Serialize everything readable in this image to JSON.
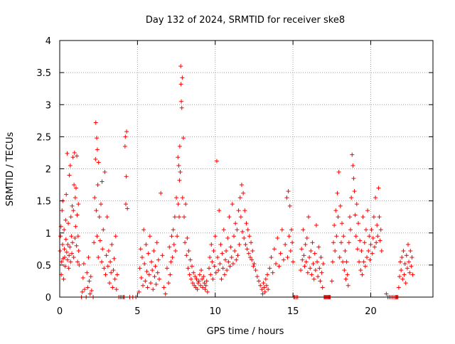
{
  "chart_data": {
    "type": "scatter",
    "title": "Day 132 of 2024, SRMTID for receiver ske8",
    "xlabel": "GPS time / hours",
    "ylabel": "SRMTID / TECUs",
    "xlim": [
      0,
      24
    ],
    "ylim": [
      0,
      4
    ],
    "x_ticks": [
      0,
      5,
      10,
      15,
      20
    ],
    "x_tick_labels": [
      "0",
      "5",
      "10",
      "15",
      "20"
    ],
    "y_ticks": [
      0,
      0.5,
      1,
      1.5,
      2,
      2.5,
      3,
      3.5,
      4
    ],
    "y_tick_labels": [
      "0",
      "0.5",
      "1",
      "1.5",
      "2",
      "2.5",
      "3",
      "3.5",
      "4"
    ],
    "grid": true,
    "marker": "+",
    "marker_color": "#ff0000",
    "series": [
      {
        "name": "SRMTID",
        "color": "#ff0000",
        "x": [
          0.02,
          0.05,
          0.08,
          0.1,
          0.12,
          0.15,
          0.18,
          0.2,
          0.22,
          0.25,
          0.28,
          0.3,
          0.32,
          0.35,
          0.38,
          0.4,
          0.42,
          0.45,
          0.48,
          0.5,
          0.52,
          0.55,
          0.58,
          0.6,
          0.62,
          0.65,
          0.68,
          0.7,
          0.72,
          0.75,
          0.78,
          0.8,
          0.82,
          0.85,
          0.88,
          0.9,
          0.92,
          0.95,
          0.98,
          1.0,
          1.02,
          1.05,
          1.08,
          1.1,
          1.12,
          1.15,
          1.18,
          1.2,
          1.22,
          1.25,
          1.4,
          1.45,
          1.5,
          1.55,
          1.6,
          1.7,
          1.75,
          1.8,
          1.85,
          1.9,
          1.95,
          2.0,
          2.05,
          2.15,
          2.2,
          2.25,
          2.3,
          2.32,
          2.35,
          2.38,
          2.4,
          2.42,
          2.45,
          2.48,
          2.5,
          2.55,
          2.6,
          2.65,
          2.7,
          2.72,
          2.75,
          2.8,
          2.85,
          2.9,
          2.95,
          3.0,
          3.05,
          3.1,
          3.15,
          3.2,
          3.25,
          3.3,
          3.35,
          3.4,
          3.45,
          3.5,
          3.55,
          3.6,
          3.65,
          3.7,
          3.8,
          3.9,
          4.0,
          4.1,
          4.15,
          4.2,
          4.22,
          4.25,
          4.28,
          4.3,
          4.35,
          4.5,
          4.7,
          4.9,
          5.1,
          5.15,
          5.2,
          5.25,
          5.3,
          5.35,
          5.4,
          5.45,
          5.5,
          5.55,
          5.6,
          5.65,
          5.7,
          5.75,
          5.8,
          5.85,
          5.9,
          5.95,
          6.0,
          6.05,
          6.1,
          6.15,
          6.2,
          6.25,
          6.3,
          6.35,
          6.4,
          6.5,
          6.6,
          6.7,
          6.8,
          6.9,
          7.0,
          7.05,
          7.1,
          7.15,
          7.2,
          7.25,
          7.3,
          7.35,
          7.4,
          7.45,
          7.5,
          7.55,
          7.6,
          7.62,
          7.65,
          7.68,
          7.7,
          7.72,
          7.75,
          7.78,
          7.8,
          7.82,
          7.85,
          7.88,
          7.9,
          7.95,
          8.0,
          8.05,
          8.1,
          8.15,
          8.2,
          8.25,
          8.3,
          8.35,
          8.4,
          8.45,
          8.5,
          8.55,
          8.6,
          8.65,
          8.7,
          8.75,
          8.8,
          8.85,
          8.9,
          8.95,
          9.0,
          9.05,
          9.1,
          9.15,
          9.2,
          9.25,
          9.3,
          9.35,
          9.4,
          9.45,
          9.5,
          9.6,
          9.65,
          9.7,
          9.75,
          9.8,
          9.85,
          9.9,
          9.95,
          10.0,
          10.05,
          10.1,
          10.15,
          10.2,
          10.25,
          10.3,
          10.35,
          10.4,
          10.45,
          10.5,
          10.55,
          10.6,
          10.65,
          10.7,
          10.75,
          10.8,
          10.85,
          10.9,
          10.95,
          11.0,
          11.05,
          11.1,
          11.15,
          11.2,
          11.25,
          11.3,
          11.35,
          11.4,
          11.45,
          11.5,
          11.55,
          11.6,
          11.65,
          11.7,
          11.75,
          11.8,
          11.85,
          11.9,
          11.95,
          12.0,
          12.05,
          12.1,
          12.15,
          12.2,
          12.25,
          12.3,
          12.35,
          12.4,
          12.45,
          12.5,
          12.6,
          12.7,
          12.8,
          12.9,
          13.0,
          13.05,
          13.1,
          13.15,
          13.2,
          13.25,
          13.3,
          13.35,
          13.4,
          13.5,
          13.6,
          13.7,
          13.8,
          13.9,
          14.0,
          14.1,
          14.2,
          14.3,
          14.4,
          14.5,
          14.6,
          14.65,
          14.7,
          14.75,
          14.8,
          14.85,
          14.9,
          14.95,
          15.0,
          15.05,
          15.1,
          15.2,
          15.3,
          15.5,
          15.55,
          15.6,
          15.65,
          15.7,
          15.75,
          15.8,
          15.85,
          15.9,
          15.95,
          16.0,
          16.05,
          16.1,
          16.15,
          16.2,
          16.25,
          16.3,
          16.35,
          16.4,
          16.45,
          16.5,
          16.55,
          16.6,
          16.65,
          16.7,
          16.75,
          16.8,
          16.85,
          16.9,
          16.95,
          17.0,
          17.05,
          17.1,
          17.15,
          17.2,
          17.25,
          17.3,
          17.35,
          17.4,
          17.5,
          17.55,
          17.6,
          17.65,
          17.7,
          17.75,
          17.8,
          17.85,
          17.9,
          17.95,
          18.0,
          18.05,
          18.1,
          18.15,
          18.2,
          18.25,
          18.3,
          18.35,
          18.4,
          18.45,
          18.5,
          18.55,
          18.6,
          18.65,
          18.7,
          18.75,
          18.8,
          18.85,
          18.9,
          18.95,
          19.0,
          19.05,
          19.1,
          19.15,
          19.2,
          19.25,
          19.3,
          19.35,
          19.4,
          19.45,
          19.5,
          19.55,
          19.6,
          19.65,
          19.7,
          19.75,
          19.8,
          19.85,
          19.9,
          19.95,
          20.0,
          20.05,
          20.1,
          20.15,
          20.2,
          20.25,
          20.3,
          20.35,
          20.4,
          20.45,
          20.5,
          20.55,
          20.6,
          20.65,
          20.7,
          21.0,
          21.1,
          21.2,
          21.3,
          21.4,
          21.5,
          21.6,
          21.65,
          21.7,
          21.75,
          21.8,
          21.85,
          21.9,
          21.95,
          22.0,
          22.05,
          22.1,
          22.15,
          22.2,
          22.25,
          22.3,
          22.35,
          22.4,
          22.45,
          22.5,
          22.55,
          22.6,
          22.65,
          22.7
        ],
        "y": [
          0.72,
          0.95,
          1.1,
          0.35,
          0.55,
          1.35,
          0.82,
          1.5,
          0.6,
          0.28,
          1.05,
          0.75,
          0.62,
          0.48,
          1.2,
          0.9,
          1.6,
          0.7,
          2.24,
          0.58,
          0.82,
          1.15,
          0.45,
          0.65,
          1.9,
          0.78,
          2.05,
          0.55,
          1.25,
          0.95,
          0.68,
          1.42,
          0.85,
          2.18,
          1.35,
          0.62,
          1.75,
          2.25,
          0.92,
          1.55,
          1.1,
          1.7,
          0.8,
          2.2,
          1.28,
          0.55,
          0.95,
          1.45,
          0.72,
          0.5,
          0.0,
          0.08,
          0.3,
          0.52,
          0.12,
          0.0,
          0.38,
          0.15,
          0.62,
          0.25,
          0.05,
          0.32,
          0.1,
          0.0,
          0.85,
          1.55,
          2.15,
          2.72,
          1.35,
          2.48,
          0.95,
          2.3,
          1.75,
          0.62,
          2.1,
          1.25,
          0.88,
          1.45,
          0.55,
          1.8,
          0.75,
          1.05,
          0.45,
          1.95,
          0.35,
          0.65,
          1.25,
          0.48,
          0.72,
          0.22,
          0.55,
          0.38,
          0.82,
          0.15,
          0.42,
          0.6,
          0.28,
          0.95,
          0.12,
          0.35,
          0.0,
          0.0,
          0.0,
          0.0,
          0.0,
          2.35,
          2.5,
          1.45,
          1.88,
          2.58,
          1.38,
          0.0,
          0.0,
          0.0,
          0.08,
          0.45,
          0.75,
          0.3,
          0.62,
          0.18,
          1.05,
          0.52,
          0.25,
          0.82,
          0.4,
          0.15,
          0.68,
          0.35,
          0.95,
          0.22,
          0.55,
          0.42,
          0.12,
          0.72,
          0.32,
          0.48,
          0.2,
          0.85,
          0.38,
          0.58,
          0.28,
          1.62,
          0.65,
          0.15,
          0.05,
          0.45,
          0.22,
          0.78,
          0.35,
          0.55,
          0.95,
          0.62,
          1.05,
          0.82,
          1.25,
          0.72,
          1.55,
          0.95,
          2.18,
          1.45,
          2.05,
          1.25,
          1.82,
          2.35,
          1.95,
          3.6,
          3.32,
          3.05,
          2.95,
          3.42,
          1.55,
          2.48,
          1.25,
          0.85,
          1.45,
          0.65,
          0.92,
          0.45,
          0.72,
          0.35,
          0.58,
          0.28,
          0.48,
          0.22,
          0.38,
          0.18,
          0.32,
          0.15,
          0.28,
          0.12,
          0.22,
          0.25,
          0.35,
          0.18,
          0.42,
          0.28,
          0.15,
          0.32,
          0.22,
          0.12,
          0.18,
          0.25,
          0.08,
          0.45,
          0.62,
          0.35,
          0.82,
          0.55,
          0.28,
          0.72,
          0.48,
          0.95,
          0.38,
          2.12,
          0.62,
          0.42,
          1.35,
          0.52,
          0.82,
          0.28,
          0.68,
          0.45,
          1.05,
          0.35,
          0.58,
          0.72,
          0.42,
          0.92,
          0.55,
          1.25,
          0.48,
          0.78,
          0.62,
          1.45,
          0.52,
          0.95,
          0.72,
          1.15,
          0.58,
          1.05,
          0.65,
          1.35,
          0.82,
          1.55,
          1.25,
          1.75,
          1.02,
          1.62,
          0.92,
          1.35,
          0.82,
          1.15,
          0.75,
          1.05,
          0.68,
          0.95,
          0.62,
          0.85,
          0.58,
          0.72,
          0.48,
          0.52,
          0.42,
          0.32,
          0.25,
          0.18,
          0.12,
          0.05,
          0.22,
          0.15,
          0.08,
          0.28,
          0.18,
          0.35,
          0.12,
          0.45,
          0.62,
          0.38,
          0.75,
          0.52,
          0.92,
          0.48,
          0.68,
          1.05,
          0.58,
          0.82,
          1.55,
          0.62,
          1.65,
          0.95,
          1.42,
          0.72,
          1.05,
          0.85,
          0.55,
          0.0,
          0.0,
          0.0,
          0.0,
          0.42,
          0.75,
          0.58,
          1.05,
          0.65,
          0.48,
          0.82,
          0.55,
          0.92,
          0.38,
          1.25,
          0.62,
          0.45,
          0.72,
          0.35,
          0.85,
          0.52,
          0.28,
          0.68,
          0.42,
          1.12,
          0.55,
          0.32,
          0.78,
          0.45,
          0.25,
          0.62,
          0.38,
          0.15,
          0.52,
          0.0,
          0.0,
          0.0,
          0.0,
          0.0,
          0.0,
          0.0,
          0.0,
          0.0,
          0.25,
          0.55,
          0.85,
          1.12,
          0.72,
          1.35,
          0.95,
          1.62,
          1.25,
          1.95,
          0.62,
          1.42,
          0.85,
          1.15,
          0.55,
          0.95,
          0.42,
          0.72,
          0.28,
          0.55,
          0.35,
          0.18,
          0.85,
          1.25,
          1.05,
          1.55,
          2.22,
          2.05,
          1.85,
          1.65,
          1.28,
          0.95,
          1.45,
          0.75,
          1.15,
          0.55,
          0.88,
          0.42,
          0.72,
          0.35,
          1.25,
          0.55,
          0.85,
          0.48,
          1.05,
          0.62,
          1.35,
          0.72,
          0.95,
          0.58,
          0.82,
          1.05,
          0.68,
          0.92,
          1.25,
          0.78,
          1.55,
          0.85,
          1.12,
          0.95,
          1.7,
          1.25,
          0.88,
          1.05,
          0.72,
          0.05,
          0.0,
          0.0,
          0.0,
          0.0,
          0.0,
          0.0,
          0.0,
          0.0,
          0.0,
          0.15,
          0.32,
          0.55,
          0.42,
          0.62,
          0.28,
          0.72,
          0.35,
          0.52,
          0.22,
          0.65,
          0.45,
          0.82,
          0.55,
          0.38,
          0.72,
          0.48,
          0.62,
          0.35
        ]
      }
    ]
  }
}
